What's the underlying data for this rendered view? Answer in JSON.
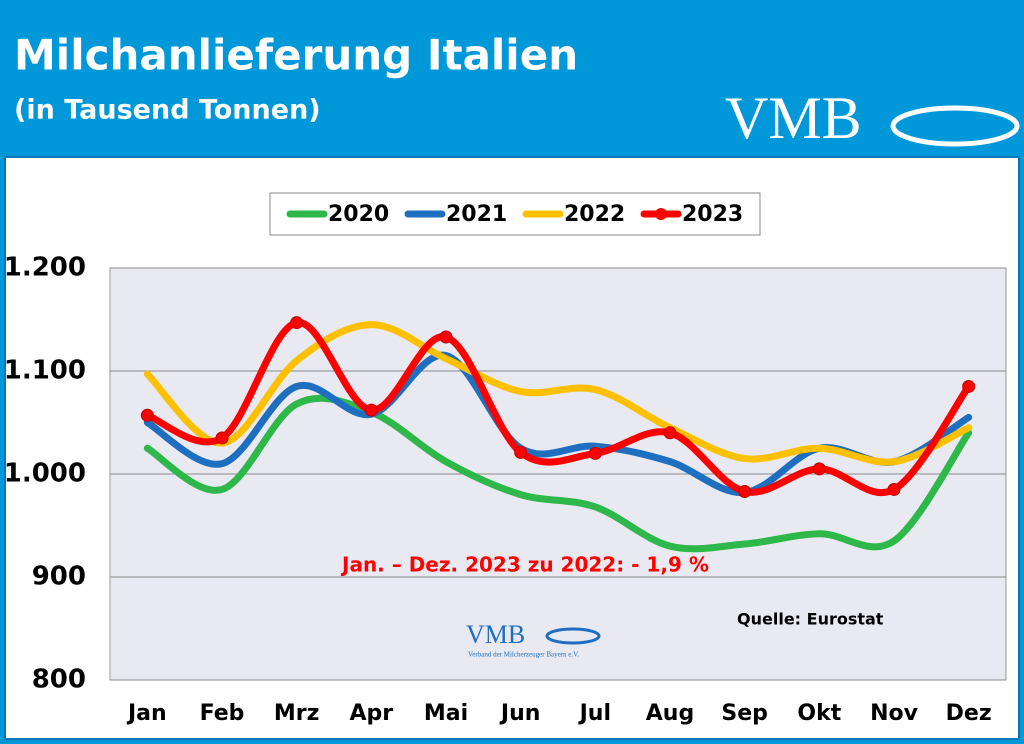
{
  "chart_data": {
    "type": "line",
    "title": "Milchanlieferung Italien",
    "subtitle": "(in Tausend Tonnen)",
    "logo": {
      "text": "VMB",
      "subtext": "Verband der Milcherzeuger Bayern e.V."
    },
    "annotations": [
      "Jan. – Dez. 2023 zu 2022: - 1,9 %",
      "Quelle: Eurostat"
    ],
    "categories": [
      "Jan",
      "Feb",
      "Mrz",
      "Apr",
      "Mai",
      "Jun",
      "Jul",
      "Aug",
      "Sep",
      "Okt",
      "Nov",
      "Dez"
    ],
    "series": [
      {
        "name": "2020",
        "color": "#2eb84a",
        "values": [
          1025,
          985,
          1068,
          1060,
          1012,
          980,
          968,
          930,
          932,
          942,
          935,
          1040
        ]
      },
      {
        "name": "2021",
        "color": "#1f6fc0",
        "values": [
          1050,
          1010,
          1085,
          1058,
          1115,
          1025,
          1027,
          1012,
          982,
          1025,
          1012,
          1055
        ]
      },
      {
        "name": "2022",
        "color": "#ffc000",
        "values": [
          1097,
          1030,
          1110,
          1145,
          1112,
          1080,
          1082,
          1045,
          1015,
          1025,
          1012,
          1045
        ]
      },
      {
        "name": "2023",
        "color": "#ff0000",
        "markers": true,
        "values": [
          1057,
          1035,
          1147,
          1062,
          1133,
          1021,
          1020,
          1040,
          983,
          1005,
          985,
          1085
        ]
      }
    ],
    "ylim": [
      800,
      1200
    ],
    "yticks": [
      800,
      900,
      {
        "value": 1000,
        "label": "1.000"
      },
      {
        "value": 1100,
        "label": "1.100"
      },
      {
        "value": 1200,
        "label": "1.200"
      }
    ],
    "grid": true
  }
}
